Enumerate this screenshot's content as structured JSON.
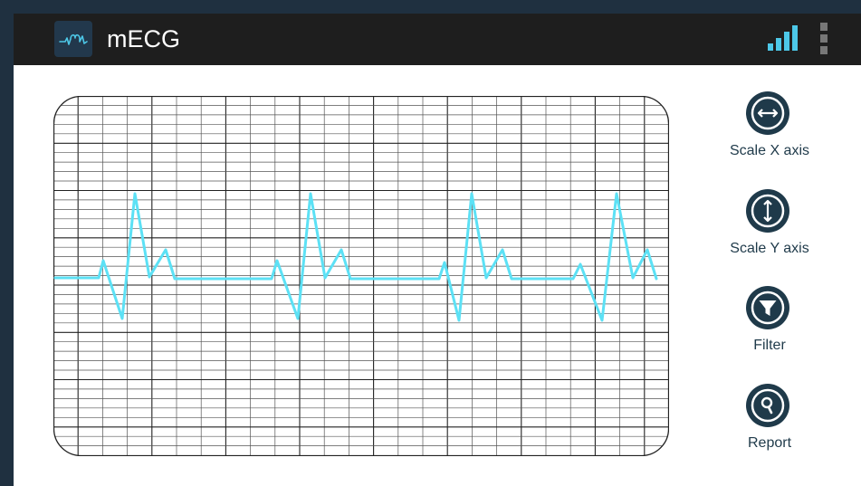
{
  "app": {
    "title": "mECG",
    "logo_icon": "heart-pulse-icon"
  },
  "status": {
    "signal_icon": "signal-bars-icon",
    "menu_icon": "overflow-menu-icon"
  },
  "tools": [
    {
      "label": "Scale X axis",
      "icon": "horizontal-arrows-icon"
    },
    {
      "label": "Scale Y axis",
      "icon": "vertical-arrows-icon"
    },
    {
      "label": "Filter",
      "icon": "funnel-icon"
    },
    {
      "label": "Report",
      "icon": "magnifier-icon"
    }
  ],
  "colors": {
    "app_bar": "#1e1e1e",
    "frame": "#1f3040",
    "accent": "#4dc8e8",
    "trace": "#5ce1f5",
    "tool_circle": "#1f3a4a",
    "grid_major": "#222222",
    "grid_minor": "#555555"
  },
  "ecg": {
    "heartbeats": 4,
    "rhythm": "regular"
  }
}
